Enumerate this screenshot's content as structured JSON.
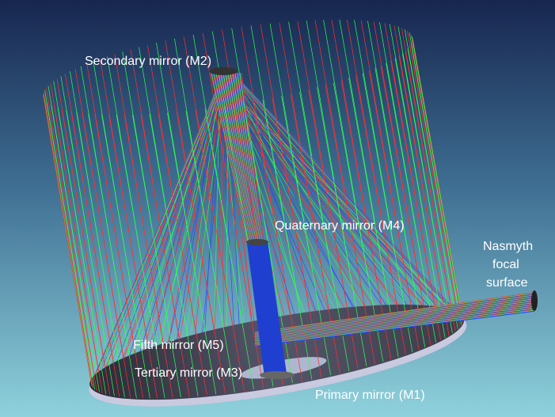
{
  "labels": {
    "secondary": "Secondary mirror (M2)",
    "quaternary": "Quaternary mirror (M4)",
    "nasmyth": [
      "Nasmyth",
      "focal",
      "surface"
    ],
    "fifth": "Fifth mirror (M5)",
    "tertiary": "Tertiary mirror (M3)",
    "primary": "Primary mirror (M1)"
  }
}
